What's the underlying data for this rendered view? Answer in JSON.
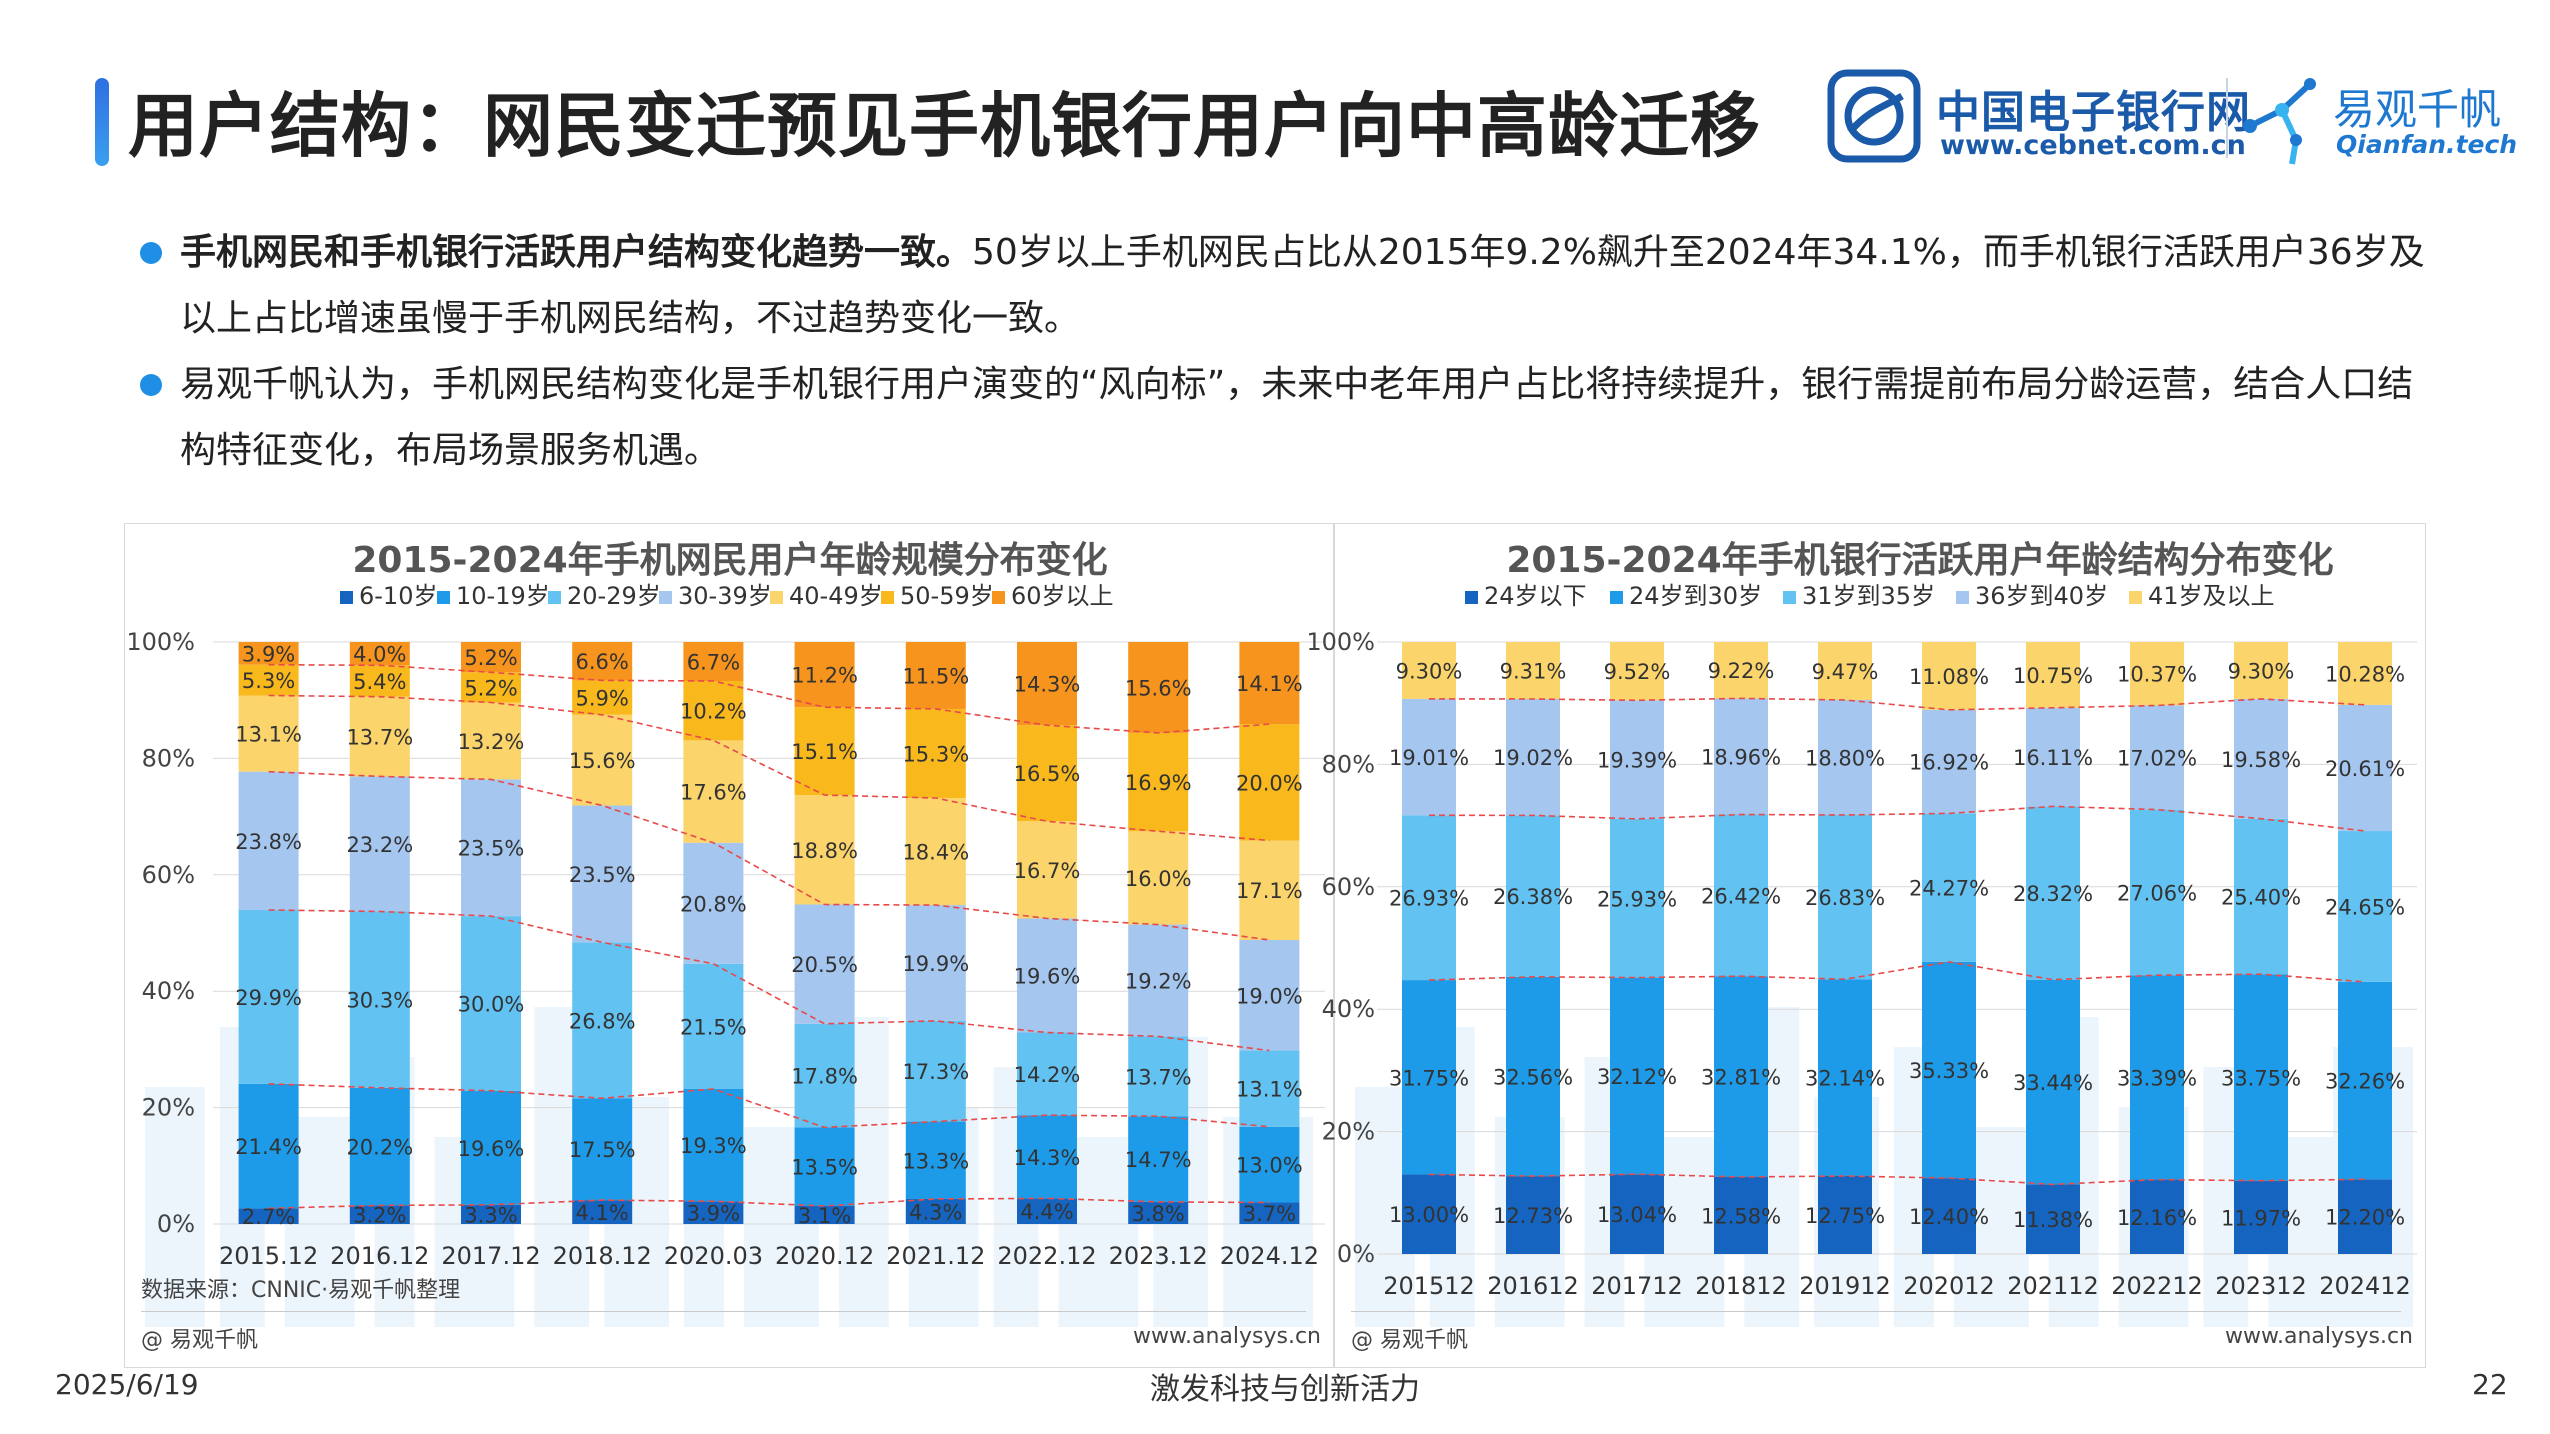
{
  "page": {
    "title": "用户结构：网民变迁预见手机银行用户向中高龄迁移",
    "date": "2025/6/19",
    "slogan": "激发科技与创新活力",
    "page_number": "22"
  },
  "logos": {
    "cebnet_cn": "中国电子银行网",
    "cebnet_en": "www.cebnet.com.cn",
    "qianfan_cn": "易观千帆",
    "qianfan_en": "Qianfan.tech"
  },
  "bullets": [
    {
      "bold": "手机网民和手机银行活跃用户结构变化趋势一致。",
      "text": "50岁以上手机网民占比从2015年9.2%飙升至2024年34.1%，而手机银行活跃用户36岁及以上占比增速虽慢于手机网民结构，不过趋势变化一致。"
    },
    {
      "bold": "",
      "text": "易观千帆认为，手机网民结构变化是手机银行用户演变的“风向标”，未来中老年用户占比将持续提升，银行需提前布局分龄运营，结合人口结构特征变化，布局场景服务机遇。"
    }
  ],
  "left_panel": {
    "source": "数据来源：CNNIC·易观千帆整理",
    "brand": "@ 易观千帆",
    "url": "www.analysys.cn"
  },
  "right_panel": {
    "brand": "@ 易观千帆",
    "url": "www.analysys.cn"
  },
  "colors": {
    "accent": "#1f8fe6",
    "grid": "#d9d9d9",
    "trend_line": "#e84a4a"
  },
  "chart_data": [
    {
      "type": "bar",
      "stacked": true,
      "percent": true,
      "title": "2015-2024年手机网民用户年龄规模分布变化",
      "ylim": [
        0,
        100
      ],
      "yticks": [
        "0%",
        "20%",
        "40%",
        "60%",
        "80%",
        "100%"
      ],
      "categories": [
        "2015.12",
        "2016.12",
        "2017.12",
        "2018.12",
        "2020.03",
        "2020.12",
        "2021.12",
        "2022.12",
        "2023.12",
        "2024.12"
      ],
      "legend_position": "top",
      "series": [
        {
          "name": "6-10岁",
          "color": "#1565c0",
          "values": [
            2.7,
            3.2,
            3.3,
            4.1,
            3.9,
            3.1,
            4.3,
            4.4,
            3.8,
            3.7
          ]
        },
        {
          "name": "10-19岁",
          "color": "#1e9be8",
          "values": [
            21.4,
            20.2,
            19.6,
            17.5,
            19.3,
            13.5,
            13.3,
            14.3,
            14.7,
            13.0
          ]
        },
        {
          "name": "20-29岁",
          "color": "#62c2f2",
          "values": [
            29.9,
            30.3,
            30.0,
            26.8,
            21.5,
            17.8,
            17.3,
            14.2,
            13.7,
            13.1
          ]
        },
        {
          "name": "30-39岁",
          "color": "#a4c6ef",
          "values": [
            23.8,
            23.2,
            23.5,
            23.5,
            20.8,
            20.5,
            19.9,
            19.6,
            19.2,
            19.0
          ]
        },
        {
          "name": "40-49岁",
          "color": "#fbd46b",
          "values": [
            13.1,
            13.7,
            13.2,
            15.6,
            17.6,
            18.8,
            18.4,
            16.7,
            16.0,
            17.1
          ]
        },
        {
          "name": "50-59岁",
          "color": "#f9b81c",
          "values": [
            5.3,
            5.4,
            5.2,
            5.9,
            10.2,
            15.1,
            15.3,
            16.5,
            16.9,
            20.0
          ]
        },
        {
          "name": "60岁以上",
          "color": "#f7941d",
          "values": [
            3.9,
            4.0,
            5.2,
            6.6,
            6.7,
            11.2,
            11.5,
            14.3,
            15.6,
            14.1
          ]
        }
      ],
      "labels": [
        [
          "2.7%",
          "3.2%",
          "3.3%",
          "4.1%",
          "3.9%",
          "3.1%",
          "4.3%",
          "4.4%",
          "3.8%",
          "3.7%"
        ],
        [
          "21.4%",
          "20.2%",
          "19.6%",
          "17.5%",
          "19.3%",
          "13.5%",
          "13.3%",
          "14.3%",
          "14.7%",
          "13.0%"
        ],
        [
          "29.9%",
          "30.3%",
          "30.0%",
          "26.8%",
          "21.5%",
          "17.8%",
          "17.3%",
          "14.2%",
          "13.7%",
          "13.1%"
        ],
        [
          "23.8%",
          "23.2%",
          "23.5%",
          "23.5%",
          "20.8%",
          "20.5%",
          "19.9%",
          "19.6%",
          "19.2%",
          "19.0%"
        ],
        [
          "13.1%",
          "13.7%",
          "13.2%",
          "15.6%",
          "17.6%",
          "18.8%",
          "18.4%",
          "16.7%",
          "16.0%",
          "17.1%"
        ],
        [
          "5.3%",
          "5.4%",
          "5.2%",
          "5.9%",
          "10.2%",
          "15.1%",
          "15.3%",
          "16.5%",
          "16.9%",
          "20.0%"
        ],
        [
          "3.9%",
          "4.0%",
          "5.2%",
          "6.6%",
          "6.7%",
          "11.2%",
          "11.5%",
          "14.3%",
          "15.6%",
          "14.1%"
        ]
      ]
    },
    {
      "type": "bar",
      "stacked": true,
      "percent": true,
      "title": "2015-2024年手机银行活跃用户年龄结构分布变化",
      "ylim": [
        0,
        100
      ],
      "yticks": [
        "0%",
        "20%",
        "40%",
        "60%",
        "80%",
        "100%"
      ],
      "categories": [
        "201512",
        "201612",
        "201712",
        "201812",
        "201912",
        "202012",
        "202112",
        "202212",
        "202312",
        "202412"
      ],
      "legend_position": "top",
      "series": [
        {
          "name": "24岁以下",
          "color": "#1565c0",
          "values": [
            13.0,
            12.73,
            13.04,
            12.58,
            12.75,
            12.4,
            11.38,
            12.16,
            11.97,
            12.2
          ]
        },
        {
          "name": "24岁到30岁",
          "color": "#1e9be8",
          "values": [
            31.75,
            32.56,
            32.12,
            32.81,
            32.14,
            35.33,
            33.44,
            33.39,
            33.75,
            32.26
          ]
        },
        {
          "name": "31岁到35岁",
          "color": "#62c2f2",
          "values": [
            26.93,
            26.38,
            25.93,
            26.42,
            26.83,
            24.27,
            28.32,
            27.06,
            25.4,
            24.65
          ]
        },
        {
          "name": "36岁到40岁",
          "color": "#a4c6ef",
          "values": [
            19.01,
            19.02,
            19.39,
            18.96,
            18.8,
            16.92,
            16.11,
            17.02,
            19.58,
            20.61
          ]
        },
        {
          "name": "41岁及以上",
          "color": "#fbd46b",
          "values": [
            9.3,
            9.31,
            9.52,
            9.22,
            9.47,
            11.08,
            10.75,
            10.37,
            9.3,
            10.28
          ]
        }
      ],
      "labels": [
        [
          "13.00%",
          "12.73%",
          "13.04%",
          "12.58%",
          "12.75%",
          "12.40%",
          "11.38%",
          "12.16%",
          "11.97%",
          "12.20%"
        ],
        [
          "31.75%",
          "32.56%",
          "32.12%",
          "32.81%",
          "32.14%",
          "35.33%",
          "33.44%",
          "33.39%",
          "33.75%",
          "32.26%"
        ],
        [
          "26.93%",
          "26.38%",
          "25.93%",
          "26.42%",
          "26.83%",
          "24.27%",
          "28.32%",
          "27.06%",
          "25.40%",
          "24.65%"
        ],
        [
          "19.01%",
          "19.02%",
          "19.39%",
          "18.96%",
          "18.80%",
          "16.92%",
          "16.11%",
          "17.02%",
          "19.58%",
          "20.61%"
        ],
        [
          "9.30%",
          "9.31%",
          "9.52%",
          "9.22%",
          "9.47%",
          "11.08%",
          "10.75%",
          "10.37%",
          "9.30%",
          "10.28%"
        ]
      ]
    }
  ]
}
